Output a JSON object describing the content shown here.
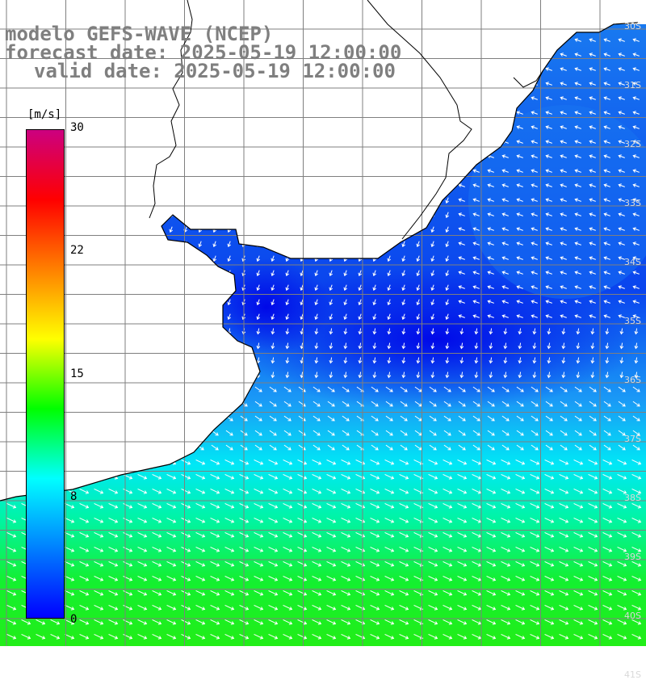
{
  "title": {
    "line1": "modelo GEFS-WAVE (NCEP)",
    "line2": "forecast date: 2025-05-19 12:00:00",
    "line3": "valid date: 2025-05-19 12:00:00"
  },
  "colorbar": {
    "unit": "[m/s]",
    "min": 0,
    "max": 30,
    "ticks": [
      "30",
      "22",
      "15",
      "8",
      "0"
    ],
    "colors": [
      "#0000ff",
      "#0080ff",
      "#00ffff",
      "#00ff00",
      "#ffff00",
      "#ff8000",
      "#ff0000",
      "#cc0080"
    ]
  },
  "map": {
    "variable": "wind speed and direction",
    "lat_labels": [
      "30S",
      "31S",
      "32S",
      "33S",
      "34S",
      "35S",
      "36S",
      "37S",
      "38S",
      "39S",
      "40S",
      "41S"
    ],
    "colors": {
      "land": "#ffffff",
      "grid": "#7f7f7f",
      "coast": "#000000"
    }
  }
}
